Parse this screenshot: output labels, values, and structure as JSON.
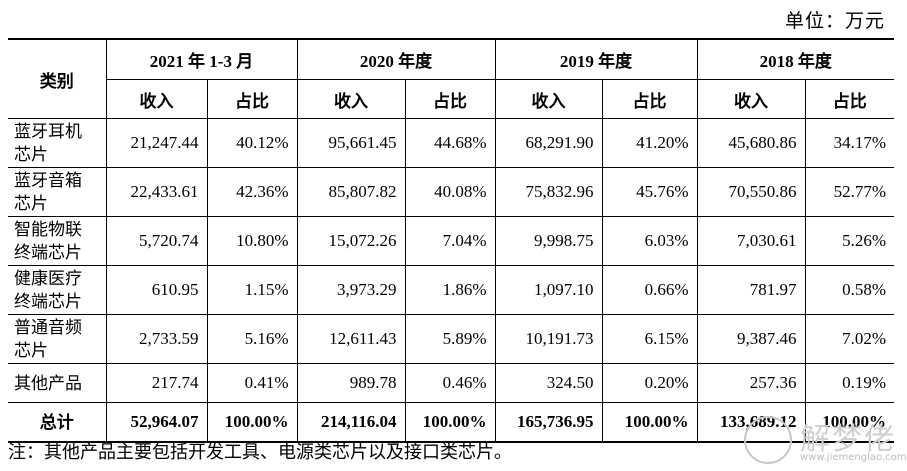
{
  "unit_label": "单位：万元",
  "table": {
    "category_header": "类别",
    "periods": [
      "2021 年 1-3 月",
      "2020 年度",
      "2019 年度",
      "2018 年度"
    ],
    "sub_headers": {
      "income": "收入",
      "share": "占比"
    },
    "rows": [
      {
        "category_line1": "蓝牙耳机",
        "category_line2": "芯片",
        "cells": [
          "21,247.44",
          "40.12%",
          "95,661.45",
          "44.68%",
          "68,291.90",
          "41.20%",
          "45,680.86",
          "34.17%"
        ]
      },
      {
        "category_line1": "蓝牙音箱",
        "category_line2": "芯片",
        "cells": [
          "22,433.61",
          "42.36%",
          "85,807.82",
          "40.08%",
          "75,832.96",
          "45.76%",
          "70,550.86",
          "52.77%"
        ]
      },
      {
        "category_line1": "智能物联",
        "category_line2": "终端芯片",
        "cells": [
          "5,720.74",
          "10.80%",
          "15,072.26",
          "7.04%",
          "9,998.75",
          "6.03%",
          "7,030.61",
          "5.26%"
        ]
      },
      {
        "category_line1": "健康医疗",
        "category_line2": "终端芯片",
        "cells": [
          "610.95",
          "1.15%",
          "3,973.29",
          "1.86%",
          "1,097.10",
          "0.66%",
          "781.97",
          "0.58%"
        ]
      },
      {
        "category_line1": "普通音频",
        "category_line2": "芯片",
        "cells": [
          "2,733.59",
          "5.16%",
          "12,611.43",
          "5.89%",
          "10,191.73",
          "6.15%",
          "9,387.46",
          "7.02%"
        ]
      },
      {
        "category_line1": "其他产品",
        "category_line2": "",
        "cells": [
          "217.74",
          "0.41%",
          "989.78",
          "0.46%",
          "324.50",
          "0.20%",
          "257.36",
          "0.19%"
        ]
      }
    ],
    "total": {
      "label": "总计",
      "cells": [
        "52,964.07",
        "100.00%",
        "214,116.04",
        "100.00%",
        "165,736.95",
        "100.00%",
        "133,689.12",
        "100.00%"
      ]
    }
  },
  "note": "注：其他产品主要包括开发工具、电源类芯片以及接口类芯片。",
  "watermark": {
    "text": "解梦佬",
    "url": "www.jiemenglao.com"
  }
}
